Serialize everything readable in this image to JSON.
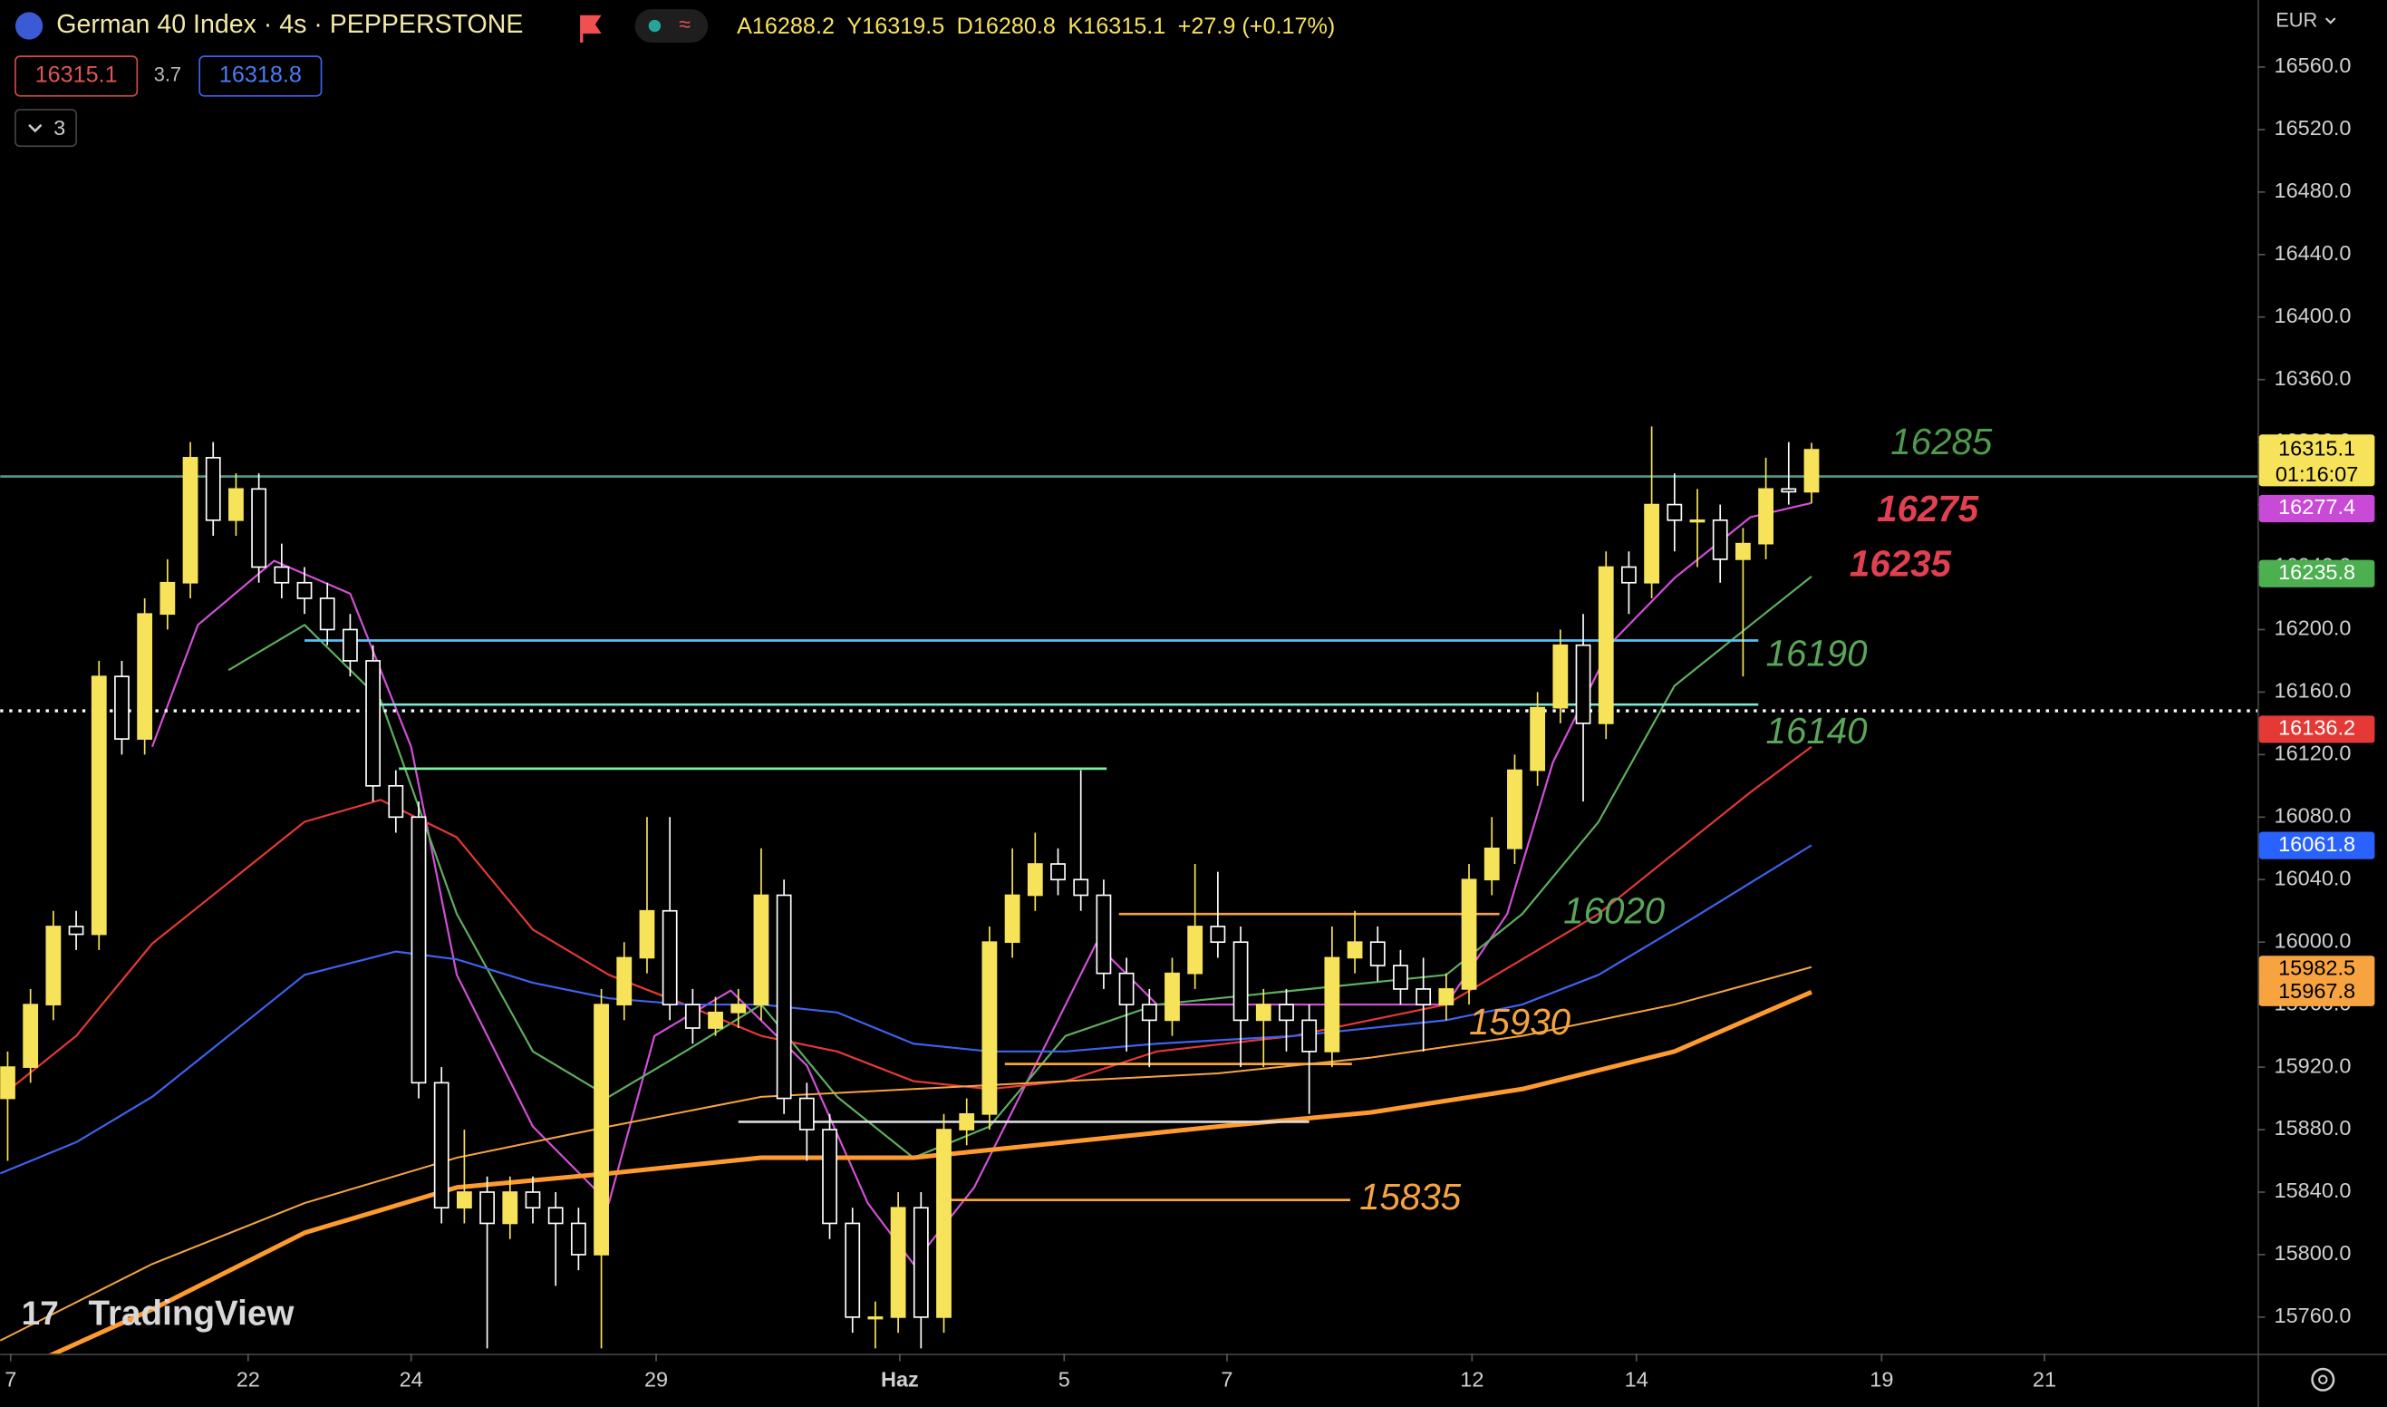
{
  "chart_data": {
    "type": "candlestick",
    "title": "German 40 Index · 4s · PEPPERSTONE",
    "ohlc": {
      "labels": [
        "A",
        "Y",
        "D",
        "K"
      ],
      "values": [
        16288.2,
        16319.5,
        16280.8,
        16315.1
      ]
    },
    "change": "+27.9 (+0.17%)",
    "bid": 16315.1,
    "spread": 3.7,
    "ask": 16318.8,
    "indicator_count": 3,
    "currency": "EUR",
    "logo": "TradingView",
    "up_color": "#f7e35a",
    "down_color": "#ffffff",
    "ylim": [
      15736.6,
      16602.9
    ],
    "yticks": [
      {
        "value": 16560,
        "label": "16560.0"
      },
      {
        "value": 16520,
        "label": "16520.0"
      },
      {
        "value": 16480,
        "label": "16480.0"
      },
      {
        "value": 16440,
        "label": "16440.0"
      },
      {
        "value": 16400,
        "label": "16400.0"
      },
      {
        "value": 16360,
        "label": "16360.0"
      },
      {
        "value": 16320,
        "label": "16320.0"
      },
      {
        "value": 16280,
        "label": "16280.0"
      },
      {
        "value": 16240,
        "label": "16240.0"
      },
      {
        "value": 16200,
        "label": "16200.0"
      },
      {
        "value": 16160,
        "label": "16160.0"
      },
      {
        "value": 16120,
        "label": "16120.0"
      },
      {
        "value": 16080,
        "label": "16080.0"
      },
      {
        "value": 16040,
        "label": "16040.0"
      },
      {
        "value": 16000,
        "label": "16000.0"
      },
      {
        "value": 15960,
        "label": "15960.0"
      },
      {
        "value": 15920,
        "label": "15920.0"
      },
      {
        "value": 15880,
        "label": "15880.0"
      },
      {
        "value": 15840,
        "label": "15840.0"
      },
      {
        "value": 15800,
        "label": "15800.0"
      },
      {
        "value": 15760,
        "label": "15760.0"
      }
    ],
    "xlim": [
      -0.33,
      98.53
    ],
    "xticks": [
      {
        "value": 0.13,
        "label": "7"
      },
      {
        "value": 10.53,
        "label": "22"
      },
      {
        "value": 17.67,
        "label": "24"
      },
      {
        "value": 28.4,
        "label": "29"
      },
      {
        "value": 39.07,
        "label": "Haz"
      },
      {
        "value": 46.27,
        "label": "5"
      },
      {
        "value": 53.4,
        "label": "7"
      },
      {
        "value": 64.13,
        "label": "12"
      },
      {
        "value": 71.33,
        "label": "14"
      },
      {
        "value": 82.07,
        "label": "19"
      },
      {
        "value": 89.2,
        "label": "21"
      }
    ],
    "candles": [
      [
        15900,
        15930,
        15860,
        15920
      ],
      [
        15920,
        15970,
        15910,
        15960
      ],
      [
        15960,
        16020,
        15950,
        16010
      ],
      [
        16010,
        16020,
        15995,
        16005
      ],
      [
        16005,
        16180,
        15995,
        16170
      ],
      [
        16170,
        16180,
        16120,
        16130
      ],
      [
        16130,
        16220,
        16120,
        16210
      ],
      [
        16210,
        16245,
        16200,
        16230
      ],
      [
        16230,
        16320,
        16220,
        16310
      ],
      [
        16310,
        16320,
        16260,
        16270
      ],
      [
        16270,
        16300,
        16260,
        16290
      ],
      [
        16290,
        16300,
        16230,
        16240
      ],
      [
        16240,
        16255,
        16220,
        16230
      ],
      [
        16230,
        16240,
        16210,
        16220
      ],
      [
        16220,
        16230,
        16190,
        16200
      ],
      [
        16200,
        16210,
        16170,
        16180
      ],
      [
        16180,
        16190,
        16090,
        16100
      ],
      [
        16100,
        16110,
        16070,
        16080
      ],
      [
        16080,
        16090,
        15900,
        15910
      ],
      [
        15910,
        15920,
        15820,
        15830
      ],
      [
        15830,
        15880,
        15820,
        15840
      ],
      [
        15840,
        15850,
        15740,
        15820
      ],
      [
        15820,
        15850,
        15810,
        15840
      ],
      [
        15840,
        15850,
        15820,
        15830
      ],
      [
        15830,
        15840,
        15780,
        15820
      ],
      [
        15820,
        15830,
        15790,
        15800
      ],
      [
        15800,
        15970,
        15740,
        15960
      ],
      [
        15960,
        16000,
        15950,
        15990
      ],
      [
        15990,
        16080,
        15980,
        16020
      ],
      [
        16020,
        16080,
        15950,
        15960
      ],
      [
        15960,
        15970,
        15935,
        15945
      ],
      [
        15945,
        15965,
        15940,
        15955
      ],
      [
        15955,
        15970,
        15945,
        15960
      ],
      [
        15960,
        16060,
        15950,
        16030
      ],
      [
        16030,
        16040,
        15890,
        15900
      ],
      [
        15900,
        15910,
        15860,
        15880
      ],
      [
        15880,
        15890,
        15810,
        15820
      ],
      [
        15820,
        15830,
        15750,
        15760
      ],
      [
        15760,
        15770,
        15740,
        15760
      ],
      [
        15760,
        15840,
        15750,
        15830
      ],
      [
        15830,
        15840,
        15740,
        15760
      ],
      [
        15760,
        15890,
        15750,
        15880
      ],
      [
        15880,
        15900,
        15870,
        15890
      ],
      [
        15890,
        16010,
        15880,
        16000
      ],
      [
        16000,
        16060,
        15990,
        16030
      ],
      [
        16030,
        16070,
        16020,
        16050
      ],
      [
        16050,
        16060,
        16030,
        16040
      ],
      [
        16040,
        16110,
        16020,
        16030
      ],
      [
        16030,
        16040,
        15970,
        15980
      ],
      [
        15980,
        15990,
        15930,
        15960
      ],
      [
        15960,
        15970,
        15920,
        15950
      ],
      [
        15950,
        15990,
        15940,
        15980
      ],
      [
        15980,
        16050,
        15970,
        16010
      ],
      [
        16010,
        16045,
        15990,
        16000
      ],
      [
        16000,
        16010,
        15920,
        15950
      ],
      [
        15950,
        15970,
        15920,
        15960
      ],
      [
        15960,
        15970,
        15930,
        15950
      ],
      [
        15950,
        15960,
        15890,
        15930
      ],
      [
        15930,
        16010,
        15920,
        15990
      ],
      [
        15990,
        16020,
        15980,
        16000
      ],
      [
        16000,
        16010,
        15975,
        15985
      ],
      [
        15985,
        15995,
        15960,
        15970
      ],
      [
        15970,
        15990,
        15930,
        15960
      ],
      [
        15960,
        15980,
        15950,
        15970
      ],
      [
        15970,
        16050,
        15960,
        16040
      ],
      [
        16040,
        16080,
        16030,
        16060
      ],
      [
        16060,
        16120,
        16050,
        16110
      ],
      [
        16110,
        16160,
        16100,
        16150
      ],
      [
        16150,
        16200,
        16140,
        16190
      ],
      [
        16190,
        16210,
        16090,
        16140
      ],
      [
        16140,
        16250,
        16130,
        16240
      ],
      [
        16240,
        16250,
        16210,
        16230
      ],
      [
        16230,
        16330,
        16220,
        16280
      ],
      [
        16280,
        16300,
        16250,
        16270
      ],
      [
        16270,
        16290,
        16240,
        16270
      ],
      [
        16270,
        16280,
        16230,
        16245
      ],
      [
        16245,
        16265,
        16170,
        16255
      ],
      [
        16255,
        16310,
        16245,
        16290
      ],
      [
        16290,
        16320,
        16280,
        16288.2
      ],
      [
        16288.2,
        16319.5,
        16280.8,
        16315.1
      ]
    ],
    "series": [
      {
        "color": "#d24fd8",
        "width": 1.3,
        "x": [
          6.33,
          8.33,
          11.67,
          15,
          17.67,
          19.67,
          23,
          26.33,
          28.33,
          31.67,
          35,
          37.67,
          39.67,
          42.33,
          45,
          47.67,
          50.33,
          54.33,
          58.33,
          63,
          65.67,
          67.67,
          70.33,
          73,
          76.33,
          79
        ],
        "values": [
          16125,
          16203,
          16244,
          16223,
          16125,
          15979,
          15882,
          15833,
          15940,
          15969,
          15921,
          15833,
          15794,
          15843,
          15921,
          15999,
          15960,
          15960,
          15960,
          15960,
          16018,
          16115,
          16193,
          16233,
          16272,
          16281
        ]
      },
      {
        "color": "#5fae5f",
        "width": 1.3,
        "x": [
          9.67,
          13,
          16.33,
          19.67,
          23,
          26.33,
          29.67,
          33,
          36.33,
          39.67,
          43,
          46.33,
          50.33,
          56.33,
          63,
          66.33,
          69.67,
          73,
          76.33,
          79
        ],
        "values": [
          16174,
          16203,
          16155,
          16018,
          15930,
          15901,
          15930,
          15960,
          15901,
          15862,
          15882,
          15940,
          15960,
          15969,
          15979,
          16018,
          16077,
          16164,
          16203,
          16234
        ]
      },
      {
        "color": "#e53935",
        "width": 1.3,
        "x": [
          -0.33,
          3,
          6.33,
          9.67,
          13,
          16.33,
          19.67,
          23,
          26.33,
          29.67,
          33,
          36.33,
          39.67,
          43,
          46.33,
          50.33,
          56.33,
          63,
          66.33,
          69.67,
          73,
          76.33,
          79
        ],
        "values": [
          15901,
          15940,
          15999,
          16038,
          16077,
          16091,
          16067,
          16008,
          15979,
          15960,
          15940,
          15930,
          15911,
          15906,
          15911,
          15930,
          15940,
          15960,
          15989,
          16018,
          16057,
          16096,
          16125
        ]
      },
      {
        "color": "#3d63f0",
        "width": 1.3,
        "x": [
          -0.33,
          3,
          6.33,
          9.67,
          13,
          17,
          19.67,
          23,
          26.33,
          29.67,
          33,
          36.33,
          39.67,
          43,
          46.33,
          50.33,
          56.33,
          63,
          66.33,
          69.67,
          73,
          76.33,
          79
        ],
        "values": [
          15852,
          15872,
          15901,
          15940,
          15979,
          15994,
          15989,
          15974,
          15964,
          15960,
          15960,
          15955,
          15935,
          15930,
          15930,
          15935,
          15940,
          15950,
          15960,
          15979,
          16008,
          16038,
          16062
        ]
      },
      {
        "color": "#f7a440",
        "width": 1.2,
        "x": [
          -0.33,
          6.33,
          13,
          19.67,
          26.33,
          33,
          39.67,
          46.33,
          53,
          59.67,
          66.33,
          73,
          79
        ],
        "values": [
          15745,
          15794,
          15833,
          15862,
          15882,
          15901,
          15906,
          15911,
          15916,
          15926,
          15940,
          15960,
          15984
        ]
      },
      {
        "color": "#ff9a2e",
        "width": 3,
        "x": [
          -0.33,
          6.33,
          13,
          19.67,
          26.33,
          33,
          39.67,
          46.33,
          53,
          59.67,
          66.33,
          73,
          79
        ],
        "values": [
          15721,
          15765,
          15814,
          15843,
          15852,
          15862,
          15862,
          15872,
          15882,
          15891,
          15906,
          15930,
          15968
        ]
      }
    ],
    "levels": [
      {
        "price": 16298,
        "color": "#4a9e8e"
      },
      {
        "price": 16148,
        "color": "#ffffff",
        "dashed": true
      },
      {
        "price": 16193,
        "x": [
          13,
          76.67
        ],
        "color": "#4fc3f7"
      },
      {
        "price": 16152,
        "x": [
          16.33,
          76.67
        ],
        "color": "#7fe6d6"
      },
      {
        "price": 16111,
        "x": [
          17.13,
          48.13
        ],
        "color": "#7cf0a0"
      },
      {
        "price": 16018,
        "x": [
          48.67,
          65.33
        ],
        "color": "#f7a440"
      },
      {
        "price": 15922,
        "x": [
          43.67,
          58.87
        ],
        "color": "#f7a440"
      },
      {
        "price": 15885,
        "x": [
          32,
          57
        ],
        "color": "#dddddd"
      },
      {
        "price": 15835,
        "x": [
          40.67,
          58.8
        ],
        "color": "#f7a440"
      }
    ],
    "annotations": [
      {
        "value": 16285,
        "color": "#4e9a4e"
      },
      {
        "value": 16275,
        "color": "#e0404f",
        "bold": true
      },
      {
        "value": 16235,
        "color": "#e0404f",
        "bold": true
      },
      {
        "value": 16190,
        "color": "#5aa65a"
      },
      {
        "value": 16140,
        "color": "#5aa65a"
      },
      {
        "value": 16020,
        "color": "#5aa65a"
      },
      {
        "value": 15930,
        "color": "#f7a440"
      },
      {
        "value": 15835,
        "color": "#f7a440"
      }
    ],
    "countdown": "01:16:07",
    "price_badges": [
      {
        "value": 16315.1,
        "color": "#f7e35a",
        "text_color": "#000000"
      },
      {
        "value": 16277.4,
        "color": "#c94ad6",
        "text_color": "#ffffff"
      },
      {
        "value": 16235.8,
        "color": "#4caf50",
        "text_color": "#ffffff"
      },
      {
        "value": 16136.2,
        "color": "#e53935",
        "text_color": "#ffffff"
      },
      {
        "value": 16061.8,
        "color": "#2962ff",
        "text_color": "#ffffff"
      },
      {
        "value": 15982.5,
        "color": "#f7a440",
        "text_color": "#000000"
      },
      {
        "value": 15967.8,
        "color": "#f7a440",
        "text_color": "#000000"
      }
    ]
  }
}
